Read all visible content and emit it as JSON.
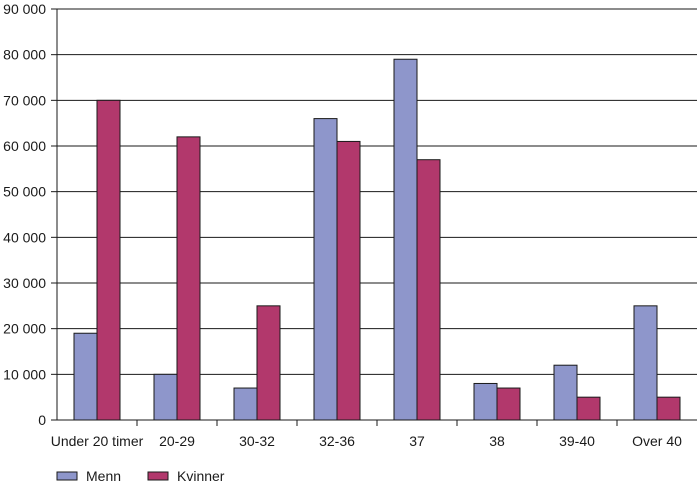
{
  "chart_data": {
    "type": "bar",
    "categories": [
      "Under 20 timer",
      "20-29",
      "30-32",
      "32-36",
      "37",
      "38",
      "39-40",
      "Over 40"
    ],
    "series": [
      {
        "name": "Menn",
        "color": "#8e96cb",
        "values": [
          19000,
          10000,
          7000,
          66000,
          79000,
          8000,
          12000,
          25000
        ]
      },
      {
        "name": "Kvinner",
        "color": "#b2386c",
        "values": [
          70000,
          62000,
          25000,
          61000,
          57000,
          7000,
          5000,
          5000
        ]
      }
    ],
    "ylim": [
      0,
      90000
    ],
    "yticks": [
      0,
      10000,
      20000,
      30000,
      40000,
      50000,
      60000,
      70000,
      80000,
      90000
    ],
    "ytick_labels": [
      "0",
      "10 000",
      "20 000",
      "30 000",
      "40 000",
      "50 000",
      "60 000",
      "70 000",
      "80 000",
      "90 000"
    ],
    "grid": true,
    "legend_position": "bottom-left"
  }
}
